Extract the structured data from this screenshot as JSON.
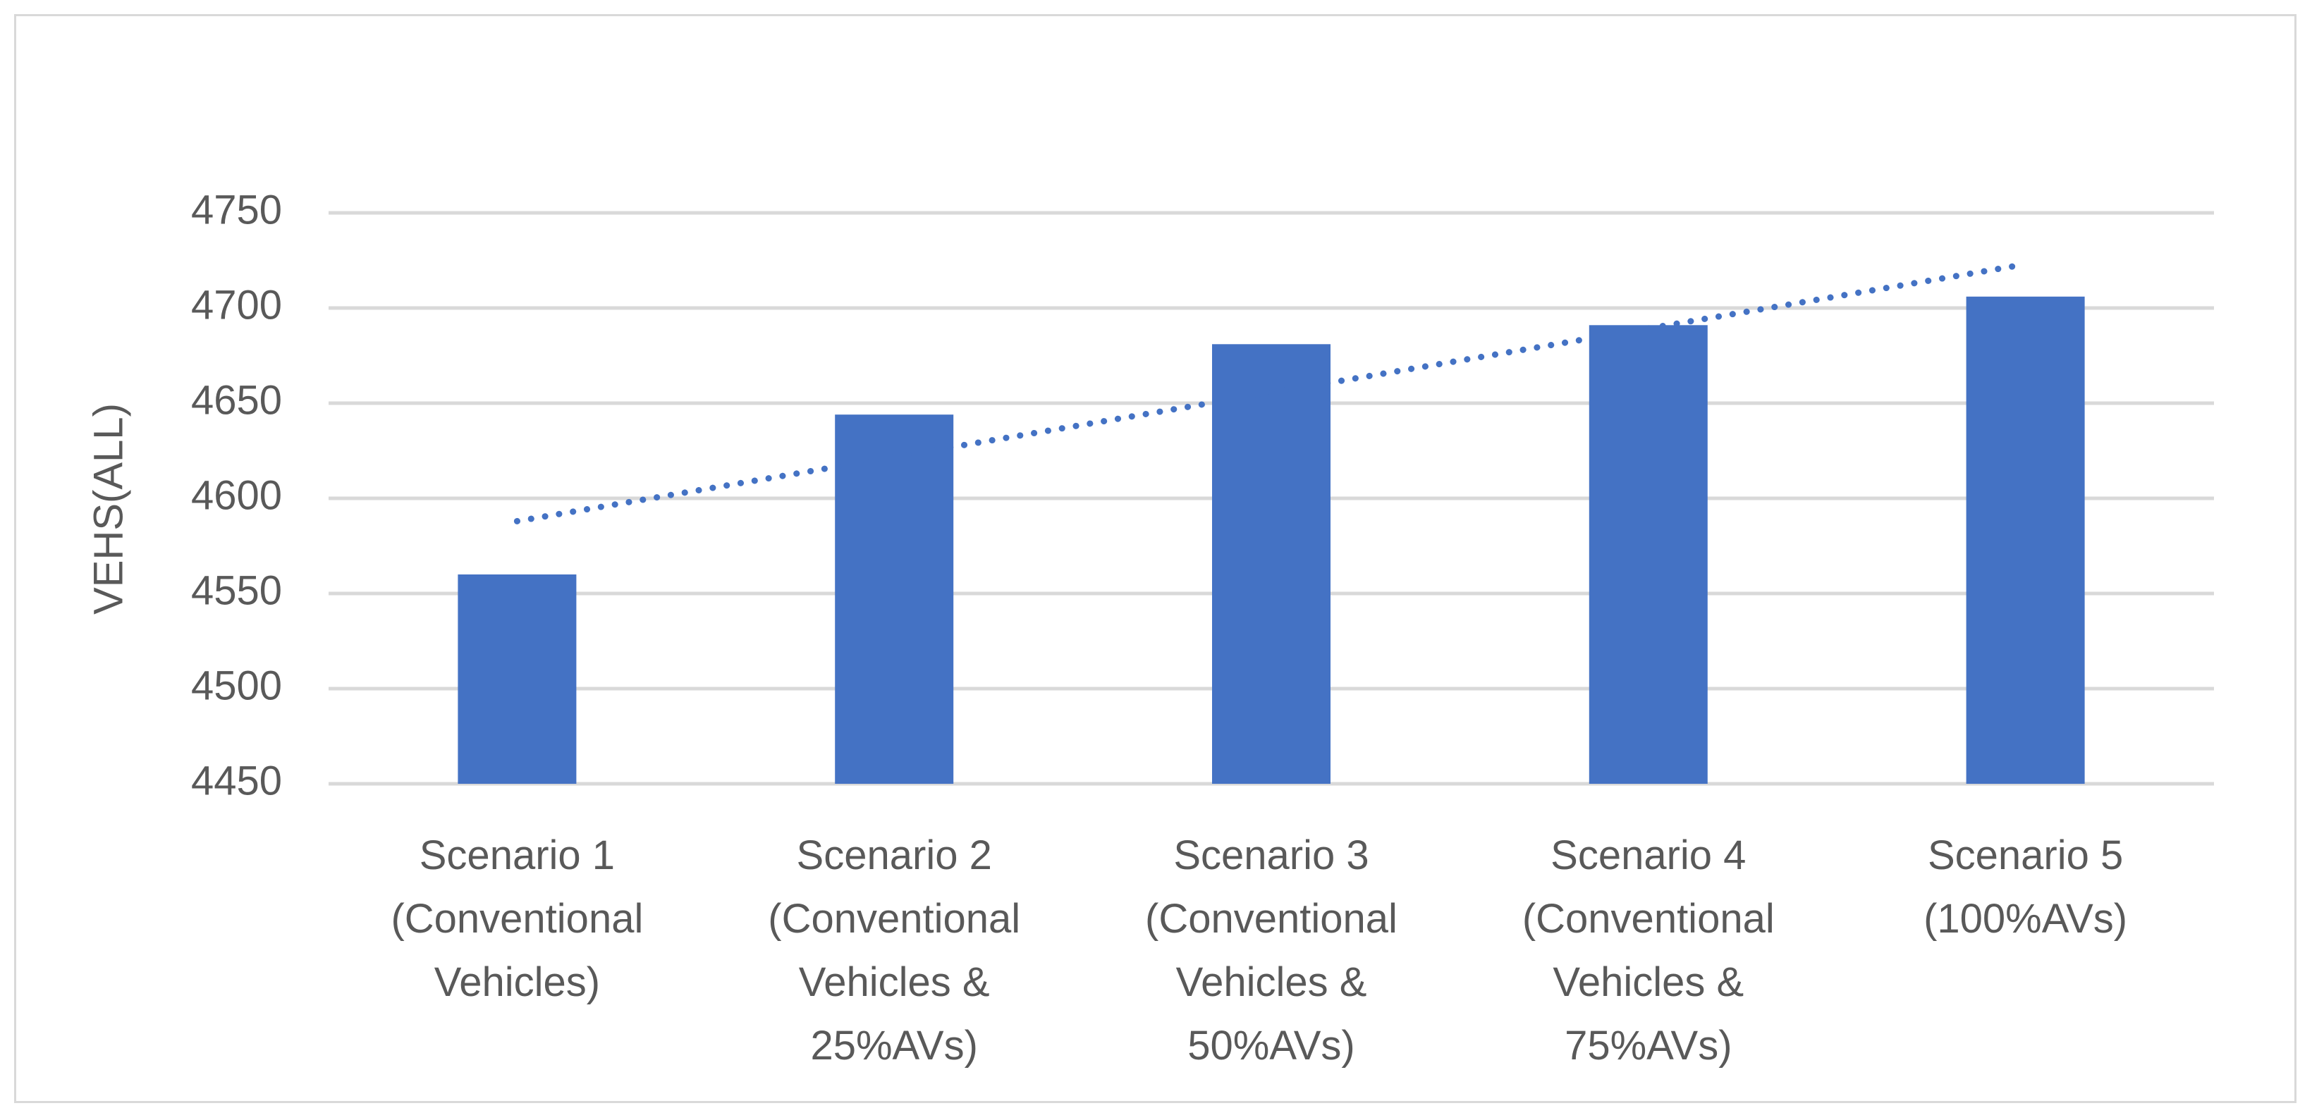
{
  "chart_data": {
    "type": "bar",
    "title": "",
    "xlabel": "",
    "ylabel": "VEHS(ALL)",
    "ylim": [
      4450,
      4750
    ],
    "yticks": [
      4450,
      4500,
      4550,
      4600,
      4650,
      4700,
      4750
    ],
    "grid": true,
    "legend": "none",
    "categories": [
      [
        "Scenario 1",
        "(Conventional",
        "Vehicles)"
      ],
      [
        "Scenario 2",
        "(Conventional",
        "Vehicles &",
        "25%AVs)"
      ],
      [
        "Scenario 3",
        "(Conventional",
        "Vehicles &",
        "50%AVs)"
      ],
      [
        "Scenario 4",
        "(Conventional",
        "Vehicles &",
        "75%AVs)"
      ],
      [
        "Scenario 5",
        "(100%AVs)"
      ]
    ],
    "series": [
      {
        "values": [
          4560,
          4644,
          4681,
          4691,
          4706
        ],
        "color": "#4472c4"
      }
    ],
    "trendline": {
      "type": "linear",
      "style": "dotted",
      "color": "#4472c4",
      "start": 4588,
      "end": 4723
    }
  }
}
